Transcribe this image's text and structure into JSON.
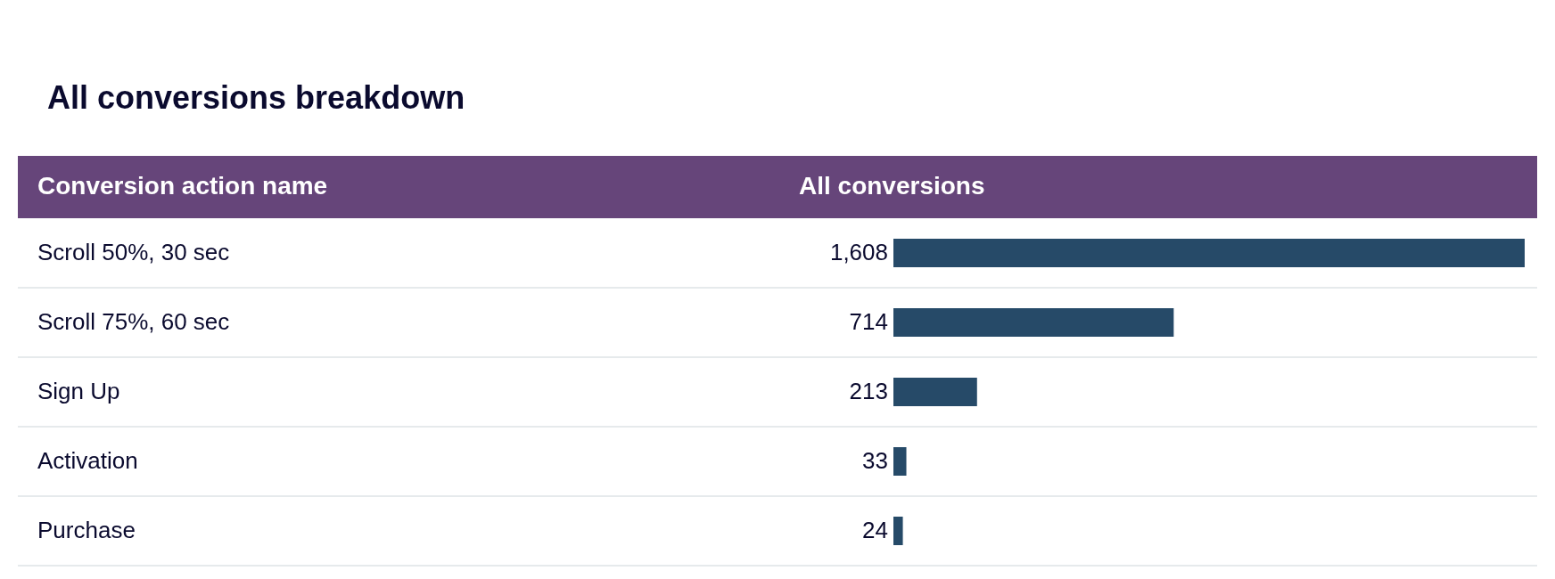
{
  "chart_data": {
    "type": "bar",
    "orientation": "horizontal",
    "title": "All conversions breakdown",
    "ylabel": "Conversion action name",
    "xlabel": "All conversions",
    "categories": [
      "Scroll 50%, 30 sec",
      "Scroll 75%, 60 sec",
      "Sign Up",
      "Activation",
      "Purchase"
    ],
    "values": [
      1608,
      714,
      213,
      33,
      24
    ],
    "value_labels": [
      "1,608",
      "714",
      "213",
      "33",
      "24"
    ],
    "color": "#264a68"
  }
}
